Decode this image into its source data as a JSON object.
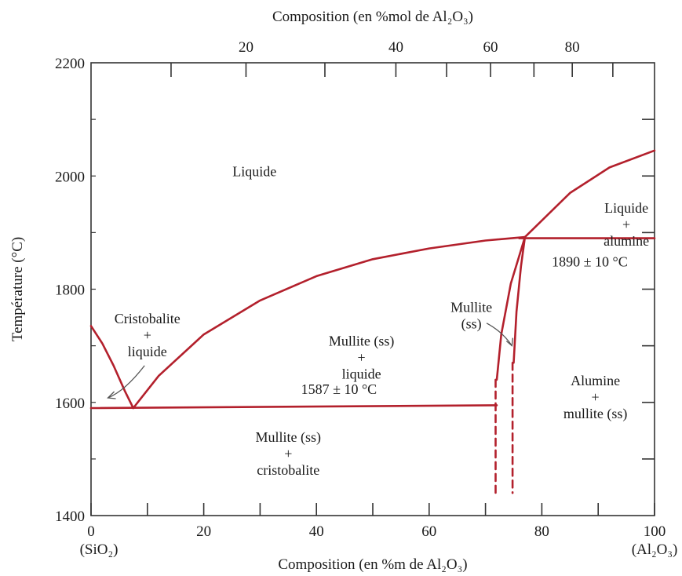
{
  "chart_data": {
    "type": "line",
    "title": "",
    "xlabel": "Composition (en %m de Al₂O₃)",
    "x2label": "Composition (en %mol de Al₂O₃)",
    "ylabel": "Température (°C)",
    "xlim": [
      0,
      100
    ],
    "ylim": [
      1400,
      2200
    ],
    "x_ticks": [
      0,
      20,
      40,
      60,
      80,
      100
    ],
    "x_tick_labels": [
      "0",
      "20",
      "40",
      "60",
      "80",
      "100"
    ],
    "x_end_labels": [
      "(SiO₂)",
      "(Al₂O₃)"
    ],
    "x2_ticks_wt": [
      27.5,
      54.1,
      70.9,
      85.4
    ],
    "x2_tick_labels": [
      "20",
      "40",
      "60",
      "80"
    ],
    "y_ticks": [
      1400,
      1600,
      1800,
      2000,
      2200
    ],
    "y_tick_labels": [
      "1400",
      "1600",
      "1800",
      "2000",
      "2200"
    ],
    "line_color": "#b3202c",
    "series": [
      {
        "style": "solid",
        "x": [
          0,
          2,
          4,
          6,
          7.5
        ],
        "y": [
          1735,
          1704,
          1665,
          1620,
          1590
        ]
      },
      {
        "style": "solid",
        "x": [
          7.5,
          12,
          20,
          30,
          40,
          50,
          60,
          70,
          77
        ],
        "y": [
          1590,
          1647,
          1720,
          1780,
          1823,
          1853,
          1872,
          1886,
          1892
        ]
      },
      {
        "style": "solid",
        "x": [
          0,
          72
        ],
        "y": [
          1590,
          1595
        ]
      },
      {
        "style": "solid",
        "x": [
          72,
          72.8,
          74.5,
          77
        ],
        "y": [
          1640,
          1720,
          1810,
          1892
        ]
      },
      {
        "style": "solid",
        "x": [
          75,
          75.5,
          76.3,
          77
        ],
        "y": [
          1670,
          1760,
          1840,
          1892
        ]
      },
      {
        "style": "solid",
        "x": [
          77,
          85,
          92,
          100
        ],
        "y": [
          1892,
          1970,
          2015,
          2045
        ]
      },
      {
        "style": "solid",
        "x": [
          76,
          100
        ],
        "y": [
          1890,
          1890
        ]
      },
      {
        "style": "dashed",
        "x": [
          71.8,
          71.8
        ],
        "y": [
          1640,
          1440
        ]
      },
      {
        "style": "dashed",
        "x": [
          74.8,
          74.8
        ],
        "y": [
          1670,
          1440
        ]
      }
    ],
    "annotations": [
      {
        "lines": [
          "Liquide"
        ],
        "x": 29,
        "y": 2000
      },
      {
        "lines": [
          "Liquide",
          "+",
          "alumine"
        ],
        "x": 95,
        "y": 1935
      },
      {
        "lines": [
          "1890 ± 10 °C"
        ],
        "x": 88.5,
        "y": 1840
      },
      {
        "lines": [
          "Cristobalite",
          "+",
          "liquide"
        ],
        "x": 10,
        "y": 1740
      },
      {
        "lines": [
          "Mullite (ss)",
          "+",
          "liquide"
        ],
        "x": 48,
        "y": 1700
      },
      {
        "lines": [
          "Mullite",
          "(ss)"
        ],
        "x": 67.5,
        "y": 1760
      },
      {
        "lines": [
          "Alumine",
          "+",
          "mullite (ss)"
        ],
        "x": 89.5,
        "y": 1630
      },
      {
        "lines": [
          "1587 ± 10 °C"
        ],
        "x": 44,
        "y": 1615
      },
      {
        "lines": [
          "Mullite (ss)",
          "+",
          "cristobalite"
        ],
        "x": 35,
        "y": 1530
      }
    ]
  }
}
